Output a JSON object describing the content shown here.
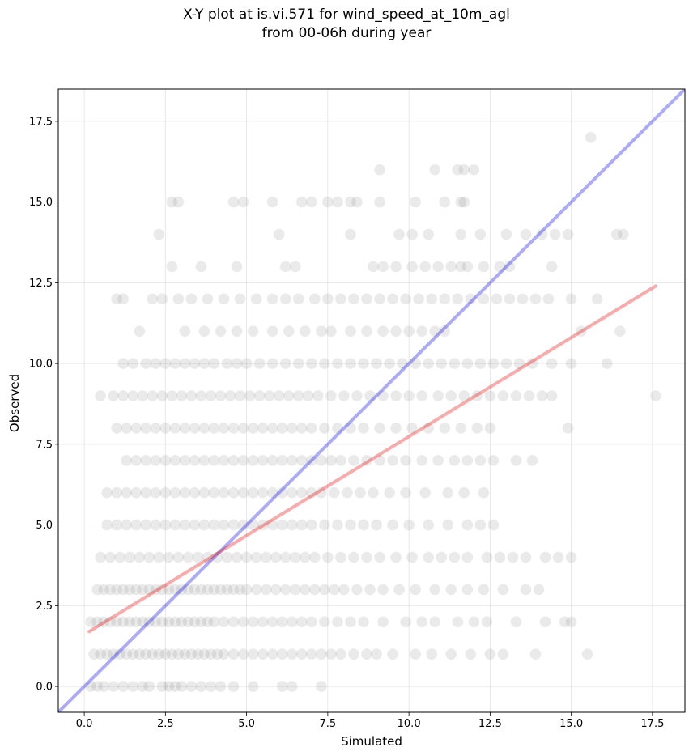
{
  "chart_data": {
    "type": "scatter",
    "title": "X-Y plot at is.vi.571 for wind_speed_at_10m_agl",
    "subtitle": "from 00-06h during year",
    "xlabel": "Simulated",
    "ylabel": "Observed",
    "xlim": [
      -0.8,
      18.5
    ],
    "ylim": [
      -0.8,
      18.5
    ],
    "xticks": [
      "0.0",
      "2.5",
      "5.0",
      "7.5",
      "10.0",
      "12.5",
      "15.0",
      "17.5"
    ],
    "yticks": [
      "0.0",
      "2.5",
      "5.0",
      "7.5",
      "10.0",
      "12.5",
      "15.0",
      "17.5"
    ],
    "grid": true,
    "point_color": "#808080",
    "series": [
      {
        "type": "scatter",
        "points_by_observed_value": [
          {
            "y": 0,
            "x": [
              0.2,
              0.4,
              0.6,
              0.9,
              1.2,
              1.5,
              1.8,
              2.0,
              2.4,
              2.6,
              2.8,
              3.0,
              3.3,
              3.6,
              3.9,
              4.2,
              4.6,
              5.2,
              6.1,
              6.4,
              7.3
            ]
          },
          {
            "y": 1,
            "x": [
              0.3,
              0.5,
              0.7,
              0.9,
              1.1,
              1.3,
              1.5,
              1.7,
              1.9,
              2.1,
              2.3,
              2.5,
              2.7,
              2.9,
              3.1,
              3.3,
              3.5,
              3.7,
              3.9,
              4.1,
              4.3,
              4.6,
              4.9,
              5.2,
              5.5,
              5.8,
              6.1,
              6.4,
              6.7,
              7.0,
              7.3,
              7.6,
              7.9,
              8.3,
              8.7,
              9.0,
              9.5,
              10.2,
              10.7,
              11.3,
              11.9,
              12.5,
              12.9,
              13.9,
              15.5
            ]
          },
          {
            "y": 2,
            "x": [
              0.2,
              0.4,
              0.6,
              0.8,
              1.0,
              1.2,
              1.4,
              1.6,
              1.8,
              2.0,
              2.2,
              2.4,
              2.6,
              2.8,
              3.0,
              3.2,
              3.4,
              3.6,
              3.8,
              4.0,
              4.3,
              4.6,
              4.9,
              5.2,
              5.5,
              5.8,
              6.1,
              6.4,
              6.7,
              7.0,
              7.4,
              7.8,
              8.2,
              8.6,
              9.2,
              9.9,
              10.4,
              10.8,
              11.5,
              12.0,
              12.4,
              13.3,
              14.2,
              14.8,
              15.0
            ]
          },
          {
            "y": 3,
            "x": [
              0.4,
              0.6,
              0.8,
              1.0,
              1.2,
              1.4,
              1.6,
              1.8,
              2.0,
              2.2,
              2.4,
              2.6,
              2.8,
              3.0,
              3.2,
              3.4,
              3.6,
              3.8,
              4.0,
              4.2,
              4.4,
              4.6,
              4.8,
              5.0,
              5.3,
              5.6,
              5.9,
              6.2,
              6.5,
              6.8,
              7.1,
              7.4,
              7.7,
              8.0,
              8.4,
              8.8,
              9.2,
              9.7,
              10.2,
              10.8,
              11.3,
              11.8,
              12.3,
              12.9,
              13.6,
              14.0
            ]
          },
          {
            "y": 4,
            "x": [
              0.5,
              0.8,
              1.1,
              1.4,
              1.7,
              2.0,
              2.3,
              2.6,
              2.9,
              3.2,
              3.5,
              3.8,
              4.1,
              4.4,
              4.7,
              5.0,
              5.3,
              5.6,
              5.9,
              6.2,
              6.5,
              6.8,
              7.1,
              7.5,
              7.9,
              8.3,
              8.7,
              9.1,
              9.6,
              10.1,
              10.6,
              11.0,
              11.4,
              11.8,
              12.4,
              12.8,
              13.2,
              13.6,
              14.2,
              14.6,
              15.0
            ]
          },
          {
            "y": 5,
            "x": [
              0.7,
              1.0,
              1.3,
              1.6,
              1.9,
              2.2,
              2.5,
              2.8,
              3.1,
              3.4,
              3.7,
              4.0,
              4.3,
              4.6,
              4.9,
              5.2,
              5.5,
              5.8,
              6.1,
              6.4,
              6.7,
              7.0,
              7.4,
              7.8,
              8.2,
              8.6,
              9.0,
              9.5,
              10.0,
              10.6,
              11.2,
              11.8,
              12.2,
              12.6
            ]
          },
          {
            "y": 6,
            "x": [
              0.7,
              1.0,
              1.3,
              1.6,
              1.9,
              2.2,
              2.5,
              2.8,
              3.1,
              3.4,
              3.7,
              4.0,
              4.3,
              4.6,
              4.9,
              5.2,
              5.5,
              5.8,
              6.1,
              6.4,
              6.7,
              7.0,
              7.3,
              7.7,
              8.1,
              8.5,
              8.9,
              9.4,
              9.9,
              10.5,
              11.2,
              11.7,
              12.3
            ]
          },
          {
            "y": 7,
            "x": [
              1.3,
              1.6,
              1.9,
              2.2,
              2.5,
              2.8,
              3.1,
              3.4,
              3.7,
              4.0,
              4.3,
              4.6,
              4.9,
              5.2,
              5.5,
              5.8,
              6.1,
              6.4,
              6.7,
              7.0,
              7.3,
              7.6,
              7.9,
              8.3,
              8.7,
              9.1,
              9.5,
              9.9,
              10.4,
              10.9,
              11.4,
              11.8,
              12.2,
              12.6,
              13.3,
              13.8
            ]
          },
          {
            "y": 8,
            "x": [
              1.0,
              1.3,
              1.6,
              1.9,
              2.2,
              2.5,
              2.8,
              3.1,
              3.4,
              3.7,
              4.0,
              4.3,
              4.6,
              4.9,
              5.2,
              5.5,
              5.8,
              6.1,
              6.4,
              6.7,
              7.0,
              7.4,
              7.8,
              8.2,
              8.6,
              9.1,
              9.6,
              10.1,
              10.6,
              11.1,
              11.6,
              12.1,
              12.5,
              14.9
            ]
          },
          {
            "y": 9,
            "x": [
              0.5,
              0.9,
              1.2,
              1.5,
              1.8,
              2.1,
              2.4,
              2.7,
              3.0,
              3.3,
              3.6,
              3.9,
              4.2,
              4.5,
              4.8,
              5.1,
              5.4,
              5.7,
              6.0,
              6.3,
              6.6,
              6.9,
              7.2,
              7.6,
              8.0,
              8.4,
              8.8,
              9.2,
              9.6,
              10.0,
              10.4,
              10.9,
              11.3,
              11.7,
              12.1,
              12.5,
              12.9,
              13.3,
              13.7,
              14.1,
              14.4,
              17.6
            ]
          },
          {
            "y": 10,
            "x": [
              1.2,
              1.5,
              1.9,
              2.2,
              2.5,
              2.8,
              3.1,
              3.4,
              3.7,
              4.0,
              4.4,
              4.7,
              5.0,
              5.4,
              5.8,
              6.2,
              6.6,
              7.0,
              7.4,
              7.8,
              8.2,
              8.6,
              9.0,
              9.4,
              9.8,
              10.2,
              10.6,
              11.0,
              11.4,
              11.8,
              12.2,
              12.6,
              13.0,
              13.4,
              13.8,
              14.4,
              15.0,
              16.1
            ]
          },
          {
            "y": 11,
            "x": [
              1.7,
              3.1,
              3.7,
              4.2,
              4.7,
              5.2,
              5.8,
              6.3,
              6.8,
              7.3,
              7.6,
              8.2,
              8.7,
              9.2,
              9.6,
              10.0,
              10.4,
              10.8,
              11.1,
              15.3,
              16.5
            ]
          },
          {
            "y": 12,
            "x": [
              1.0,
              1.2,
              2.1,
              2.4,
              2.9,
              3.3,
              3.8,
              4.3,
              4.8,
              5.3,
              5.8,
              6.2,
              6.6,
              7.1,
              7.5,
              7.9,
              8.3,
              8.7,
              9.1,
              9.5,
              9.9,
              10.3,
              10.7,
              11.1,
              11.5,
              11.9,
              12.3,
              12.7,
              13.1,
              13.5,
              13.9,
              14.3,
              15.0,
              15.8
            ]
          },
          {
            "y": 13,
            "x": [
              2.7,
              3.6,
              4.7,
              6.2,
              6.5,
              8.9,
              9.2,
              9.6,
              10.1,
              10.5,
              10.9,
              11.3,
              11.6,
              11.8,
              12.3,
              12.8,
              13.1,
              14.4
            ]
          },
          {
            "y": 14,
            "x": [
              2.3,
              6.0,
              8.2,
              9.7,
              10.1,
              10.6,
              11.6,
              12.2,
              13.0,
              13.6,
              14.1,
              14.5,
              14.9,
              16.4,
              16.6
            ]
          },
          {
            "y": 15,
            "x": [
              2.7,
              2.9,
              4.6,
              4.9,
              5.8,
              6.7,
              7.0,
              7.5,
              7.8,
              8.2,
              8.4,
              9.1,
              10.2,
              11.1,
              11.6,
              11.7
            ]
          },
          {
            "y": 16,
            "x": [
              9.1,
              10.8,
              11.5,
              11.7,
              12.0
            ]
          },
          {
            "y": 17,
            "x": [
              15.6
            ]
          }
        ]
      },
      {
        "type": "line",
        "color": "#0000ee",
        "x": [
          -0.8,
          18.5
        ],
        "y": [
          -0.8,
          18.5
        ]
      },
      {
        "type": "line",
        "color": "#ee0000",
        "x": [
          0.15,
          17.6
        ],
        "y": [
          1.7,
          12.4
        ]
      }
    ]
  }
}
